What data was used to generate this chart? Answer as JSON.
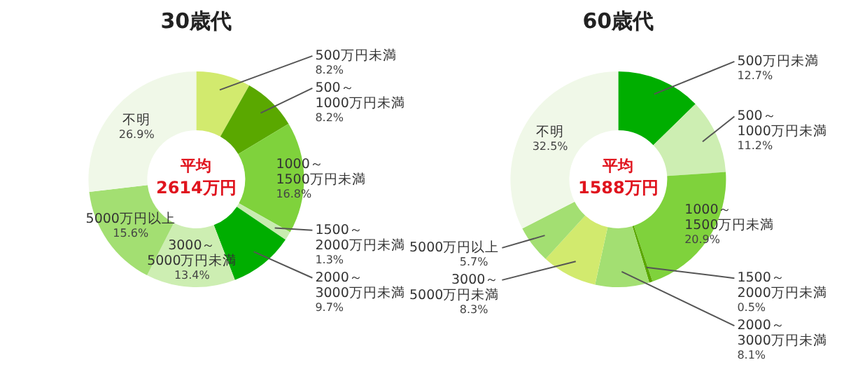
{
  "chart_data": [
    {
      "type": "donut",
      "title": "30歳代",
      "annotations": [
        "平均",
        "2614万円"
      ],
      "categories": [
        "500万円未満",
        "500～1000万円未満",
        "1000～1500万円未満",
        "1500～2000万円未満",
        "2000～3000万円未満",
        "3000～5000万円未満",
        "5000万円以上",
        "不明"
      ],
      "values": [
        8.2,
        8.2,
        16.8,
        1.3,
        9.7,
        13.4,
        15.6,
        26.9
      ],
      "value_labels": [
        "8.2%",
        "8.2%",
        "16.8%",
        "1.3%",
        "9.7%",
        "13.4%",
        "15.6%",
        "26.9%"
      ],
      "colors": [
        "#d2ea6e",
        "#5aa800",
        "#7fd23c",
        "#c8ecb0",
        "#00ae00",
        "#cdeeb2",
        "#a3df72",
        "#f0f8e8"
      ]
    },
    {
      "type": "donut",
      "title": "60歳代",
      "annotations": [
        "平均",
        "1588万円"
      ],
      "categories": [
        "500万円未満",
        "500～1000万円未満",
        "1000～1500万円未満",
        "1500～2000万円未満",
        "2000～3000万円未満",
        "3000～5000万円未満",
        "5000万円以上",
        "不明"
      ],
      "values": [
        12.7,
        11.2,
        20.9,
        0.5,
        8.1,
        8.3,
        5.7,
        32.5
      ],
      "value_labels": [
        "12.7%",
        "11.2%",
        "20.9%",
        "0.5%",
        "8.1%",
        "8.3%",
        "5.7%",
        "32.5%"
      ],
      "colors": [
        "#00ae00",
        "#cdeeb2",
        "#7fd23c",
        "#5aa800",
        "#a3df72",
        "#d2ea6e",
        "#a3df72",
        "#f0f8e8"
      ]
    }
  ]
}
